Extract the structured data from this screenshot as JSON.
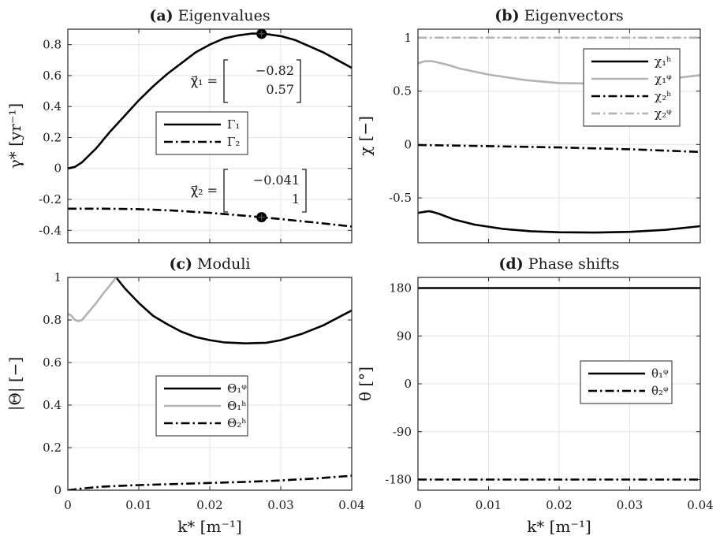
{
  "colors": {
    "black": "#000000",
    "gray": "#b3b3b3"
  },
  "chart_data": [
    {
      "panel": "a",
      "type": "line",
      "title_tag": "(a)",
      "title_text": "Eigenvalues",
      "xlabel": "",
      "ylabel": "γ* [yr⁻¹]",
      "xlim": [
        0,
        0.04
      ],
      "ylim": [
        -0.48,
        0.9
      ],
      "xticks": [
        0,
        0.01,
        0.02,
        0.03,
        0.04
      ],
      "yticks": [
        -0.4,
        -0.2,
        0,
        0.2,
        0.4,
        0.6,
        0.8
      ],
      "yticklabels": [
        "-0.4",
        "-0.2",
        "0",
        "0.2",
        "0.4",
        "0.6",
        "0.8"
      ],
      "grid": true,
      "legend_position": "center",
      "series": [
        {
          "name": "Γ₁",
          "color": "#000000",
          "dash": "solid",
          "x": [
            0,
            0.001,
            0.002,
            0.004,
            0.006,
            0.008,
            0.01,
            0.012,
            0.014,
            0.016,
            0.018,
            0.02,
            0.022,
            0.024,
            0.026,
            0.0273,
            0.028,
            0.03,
            0.032,
            0.034,
            0.036,
            0.038,
            0.04
          ],
          "y": [
            0,
            0.01,
            0.04,
            0.13,
            0.24,
            0.34,
            0.44,
            0.53,
            0.61,
            0.68,
            0.75,
            0.8,
            0.84,
            0.86,
            0.872,
            0.87,
            0.868,
            0.855,
            0.83,
            0.79,
            0.75,
            0.7,
            0.65
          ]
        },
        {
          "name": "Γ₂",
          "color": "#000000",
          "dash": "dashdot",
          "x": [
            0,
            0.005,
            0.01,
            0.015,
            0.02,
            0.025,
            0.0273,
            0.03,
            0.035,
            0.04
          ],
          "y": [
            -0.26,
            -0.26,
            -0.263,
            -0.272,
            -0.287,
            -0.306,
            -0.315,
            -0.327,
            -0.35,
            -0.375
          ]
        }
      ],
      "markers": [
        {
          "x": 0.0273,
          "y": 0.87
        },
        {
          "x": 0.0273,
          "y": -0.315
        }
      ],
      "annotations": [
        {
          "label": "χ⃗₁ =",
          "values": [
            "−0.82",
            "0.57"
          ]
        },
        {
          "label": "χ⃗₂ =",
          "values": [
            "−0.041",
            "1"
          ]
        }
      ]
    },
    {
      "panel": "b",
      "type": "line",
      "title_tag": "(b)",
      "title_text": "Eigenvectors",
      "xlabel": "",
      "ylabel": "χ [−]",
      "xlim": [
        0,
        0.04
      ],
      "ylim": [
        -0.92,
        1.08
      ],
      "xticks": [
        0,
        0.01,
        0.02,
        0.03,
        0.04
      ],
      "yticks": [
        -0.5,
        0,
        0.5,
        1
      ],
      "yticklabels": [
        "-0.5",
        "0",
        "0.5",
        "1"
      ],
      "grid": true,
      "legend_position": "top-right",
      "series": [
        {
          "name": "χ₁ʰ",
          "color": "#000000",
          "dash": "solid",
          "x": [
            0,
            0.001,
            0.0015,
            0.002,
            0.003,
            0.005,
            0.008,
            0.012,
            0.016,
            0.02,
            0.025,
            0.03,
            0.035,
            0.04
          ],
          "y": [
            -0.64,
            -0.63,
            -0.625,
            -0.63,
            -0.65,
            -0.7,
            -0.75,
            -0.79,
            -0.812,
            -0.822,
            -0.825,
            -0.818,
            -0.8,
            -0.765
          ]
        },
        {
          "name": "χ₁ᵠ",
          "color": "#b3b3b3",
          "dash": "solid",
          "x": [
            0,
            0.001,
            0.002,
            0.004,
            0.006,
            0.01,
            0.015,
            0.02,
            0.025,
            0.03,
            0.035,
            0.04
          ],
          "y": [
            0.76,
            0.78,
            0.78,
            0.75,
            0.71,
            0.655,
            0.605,
            0.575,
            0.57,
            0.58,
            0.61,
            0.65
          ]
        },
        {
          "name": "χ₂ʰ",
          "color": "#000000",
          "dash": "dashdot",
          "x": [
            0,
            0.01,
            0.02,
            0.03,
            0.04
          ],
          "y": [
            -0.005,
            -0.015,
            -0.028,
            -0.045,
            -0.07
          ]
        },
        {
          "name": "χ₂ᵠ",
          "color": "#b3b3b3",
          "dash": "dashdot",
          "x": [
            0,
            0.04
          ],
          "y": [
            1,
            1
          ]
        }
      ]
    },
    {
      "panel": "c",
      "type": "line",
      "title_tag": "(c)",
      "title_text": "Moduli",
      "xlabel": "k* [m⁻¹]",
      "ylabel": "|Θ| [−]",
      "xlim": [
        0,
        0.04
      ],
      "ylim": [
        0,
        1
      ],
      "xticks": [
        0,
        0.01,
        0.02,
        0.03,
        0.04
      ],
      "xticklabels": [
        "0",
        "0.01",
        "0.02",
        "0.03",
        "0.04"
      ],
      "yticks": [
        0,
        0.2,
        0.4,
        0.6,
        0.8,
        1
      ],
      "yticklabels": [
        "0",
        "0.2",
        "0.4",
        "0.6",
        "0.8",
        "1"
      ],
      "grid": true,
      "legend_position": "lower-center",
      "series": [
        {
          "name": "Θ₁ᵠ",
          "color": "#000000",
          "dash": "solid",
          "x": [
            0.0068,
            0.008,
            0.01,
            0.012,
            0.014,
            0.016,
            0.018,
            0.02,
            0.022,
            0.025,
            0.028,
            0.03,
            0.033,
            0.036,
            0.04
          ],
          "y": [
            1,
            0.95,
            0.88,
            0.82,
            0.78,
            0.745,
            0.72,
            0.705,
            0.695,
            0.69,
            0.693,
            0.705,
            0.735,
            0.775,
            0.845
          ]
        },
        {
          "name": "Θ₁ʰ",
          "color": "#b3b3b3",
          "dash": "solid",
          "x": [
            0,
            0.0005,
            0.001,
            0.0015,
            0.002,
            0.003,
            0.004,
            0.005,
            0.006,
            0.0068
          ],
          "y": [
            0.83,
            0.82,
            0.8,
            0.795,
            0.8,
            0.84,
            0.88,
            0.925,
            0.965,
            1
          ]
        },
        {
          "name": "Θ₂ʰ",
          "color": "#000000",
          "dash": "dashdot",
          "x": [
            0,
            0.002,
            0.005,
            0.01,
            0.015,
            0.02,
            0.025,
            0.03,
            0.035,
            0.04
          ],
          "y": [
            0,
            0.008,
            0.017,
            0.024,
            0.029,
            0.034,
            0.039,
            0.046,
            0.055,
            0.068
          ]
        }
      ]
    },
    {
      "panel": "d",
      "type": "line",
      "title_tag": "(d)",
      "title_text": "Phase shifts",
      "xlabel": "k* [m⁻¹]",
      "ylabel": "θ [°]",
      "xlim": [
        0,
        0.04
      ],
      "ylim": [
        -200,
        200
      ],
      "xticks": [
        0,
        0.01,
        0.02,
        0.03,
        0.04
      ],
      "xticklabels": [
        "0",
        "0.01",
        "0.02",
        "0.03",
        "0.04"
      ],
      "yticks": [
        -180,
        -90,
        0,
        90,
        180
      ],
      "yticklabels": [
        "-180",
        "-90",
        "0",
        "90",
        "180"
      ],
      "grid": true,
      "legend_position": "center-right",
      "series": [
        {
          "name": "θ₁ᵠ",
          "color": "#000000",
          "dash": "solid",
          "x": [
            0,
            0.04
          ],
          "y": [
            180,
            180
          ]
        },
        {
          "name": "θ₂ᵠ",
          "color": "#000000",
          "dash": "dashdot",
          "x": [
            0,
            0.04
          ],
          "y": [
            -180,
            -180
          ]
        }
      ]
    }
  ]
}
